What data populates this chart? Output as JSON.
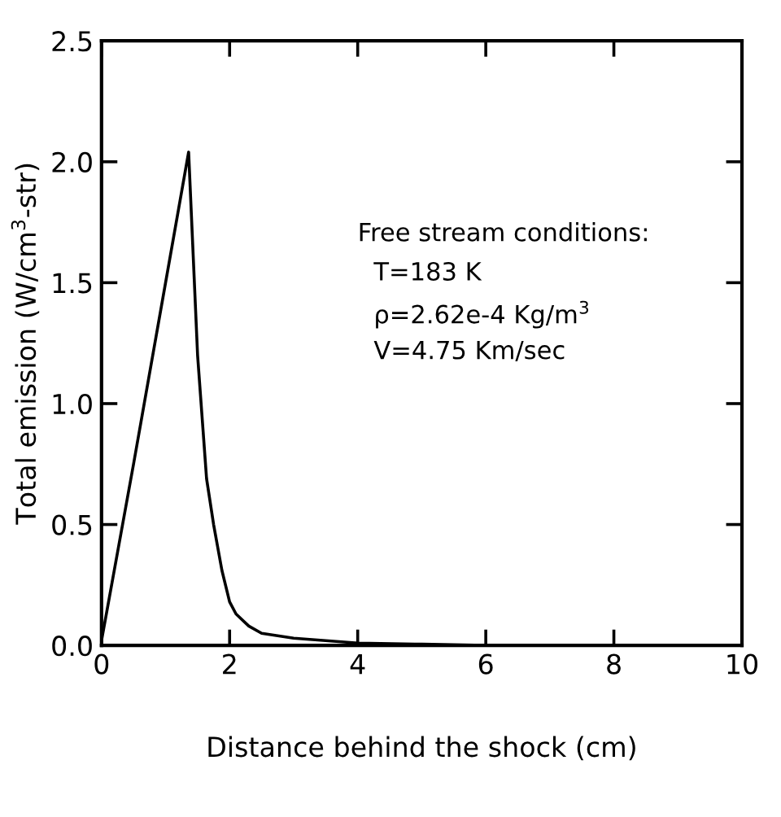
{
  "chart_data": {
    "type": "line",
    "xlabel": "Distance behind the shock (cm)",
    "ylabel": "Total emission (W/cm$^{3}$-str)",
    "x": [
      0,
      0.5,
      1.0,
      1.36,
      1.5,
      1.64,
      1.75,
      1.88,
      2.0,
      2.1,
      2.3,
      2.5,
      3.0,
      3.5,
      4.0,
      5.0,
      6.0,
      8.0,
      10.0
    ],
    "series": [
      {
        "color": "#000000",
        "values": [
          0.02,
          0.75,
          1.5,
          2.04,
          1.2,
          0.69,
          0.5,
          0.31,
          0.18,
          0.13,
          0.08,
          0.05,
          0.03,
          0.02,
          0.01,
          0.005,
          0.0,
          0.0,
          0.0
        ]
      }
    ],
    "xlim": [
      0,
      10
    ],
    "xticks": [
      0,
      2,
      4,
      6,
      8,
      10
    ],
    "ylim": [
      0,
      2.5
    ],
    "yticks": [
      {
        "value": 0,
        "label": "0.0"
      },
      {
        "value": 0.5,
        "label": "0.5"
      },
      {
        "value": 1.0,
        "label": "1.0"
      },
      {
        "value": 1.5,
        "label": "1.5"
      },
      {
        "value": 2.0,
        "label": "2.0"
      },
      {
        "value": 2.5,
        "label": "2.5"
      }
    ],
    "grid": false,
    "legend": false,
    "marker": "none",
    "line_style": "solid",
    "annotations": [
      "Free stream conditions:",
      "T=183 K",
      "ρ=2.62e-4 Kg/m$^{3}$",
      "V=4.75 Km/sec"
    ]
  }
}
